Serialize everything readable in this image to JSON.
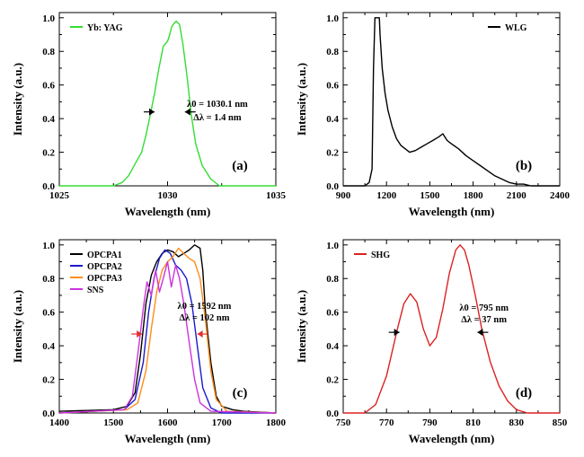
{
  "chart_data": [
    {
      "type": "line",
      "panel_label": "(a)",
      "xlabel": "Wavelength (nm)",
      "ylabel": "Intensity (a.u.)",
      "xlim": [
        1025,
        1035
      ],
      "ylim": [
        0,
        1.0
      ],
      "xticks": [
        1025,
        1030,
        1035
      ],
      "yticks": [
        0.0,
        0.2,
        0.4,
        0.6,
        0.8,
        1.0
      ],
      "grid": false,
      "legend_position": "top-left",
      "annotations": [
        {
          "text": "λ0 = 1030.1 nm",
          "x": 1032.3,
          "y": 0.47
        },
        {
          "text": "Δλ = 1.4 nm",
          "x": 1032.3,
          "y": 0.39
        }
      ],
      "arrows": [
        {
          "direction": "right",
          "x": 1029.4,
          "y": 0.44,
          "color": "#000000"
        },
        {
          "direction": "left",
          "x": 1030.8,
          "y": 0.44,
          "color": "#000000"
        }
      ],
      "series": [
        {
          "name": "Yb: YAG",
          "color": "#33dd33",
          "x": [
            1025,
            1027.5,
            1027.9,
            1028.2,
            1028.5,
            1028.8,
            1029.0,
            1029.2,
            1029.4,
            1029.6,
            1029.8,
            1030.0,
            1030.1,
            1030.2,
            1030.4,
            1030.55,
            1030.7,
            1030.9,
            1031.1,
            1031.3,
            1031.6,
            1032.0,
            1032.4,
            1035
          ],
          "y": [
            0.0,
            0.0,
            0.02,
            0.06,
            0.13,
            0.2,
            0.3,
            0.42,
            0.55,
            0.7,
            0.83,
            0.86,
            0.9,
            0.95,
            0.98,
            0.96,
            0.85,
            0.65,
            0.42,
            0.25,
            0.12,
            0.04,
            0.0,
            0.0
          ]
        }
      ]
    },
    {
      "type": "line",
      "panel_label": "(b)",
      "xlabel": "Wavelength (nm)",
      "ylabel": "Intensity (a.u.)",
      "xlim": [
        900,
        2400
      ],
      "ylim": [
        0,
        1.0
      ],
      "xticks": [
        900,
        1200,
        1500,
        1800,
        2100,
        2400
      ],
      "yticks": [
        0.0,
        0.2,
        0.4,
        0.6,
        0.8,
        1.0
      ],
      "grid": false,
      "legend_position": "top-right",
      "series": [
        {
          "name": "WLG",
          "color": "#000000",
          "x": [
            900,
            1050,
            1080,
            1100,
            1110,
            1120,
            1150,
            1155,
            1170,
            1190,
            1210,
            1240,
            1270,
            1300,
            1330,
            1360,
            1400,
            1440,
            1480,
            1520,
            1560,
            1590,
            1620,
            1650,
            1700,
            1750,
            1800,
            1850,
            1900,
            1950,
            2000,
            2050,
            2100,
            2150,
            2200,
            2300,
            2400
          ],
          "y": [
            0.0,
            0.0,
            0.02,
            0.1,
            0.7,
            1.0,
            1.0,
            0.9,
            0.7,
            0.55,
            0.45,
            0.35,
            0.28,
            0.24,
            0.22,
            0.2,
            0.21,
            0.23,
            0.25,
            0.27,
            0.29,
            0.31,
            0.27,
            0.25,
            0.22,
            0.18,
            0.15,
            0.12,
            0.09,
            0.06,
            0.04,
            0.02,
            0.01,
            0.01,
            0.0,
            0.0,
            0.0
          ]
        }
      ]
    },
    {
      "type": "line",
      "panel_label": "(c)",
      "xlabel": "Wavelength (nm)",
      "ylabel": "Intensity (a.u.)",
      "xlim": [
        1400,
        1800
      ],
      "ylim": [
        0,
        1.0
      ],
      "xticks": [
        1400,
        1500,
        1600,
        1700,
        1800
      ],
      "yticks": [
        0.0,
        0.2,
        0.4,
        0.6,
        0.8,
        1.0
      ],
      "grid": false,
      "legend_position": "top-left",
      "annotations": [
        {
          "text": "λ0 = 1592 nm",
          "x": 1668,
          "y": 0.62
        },
        {
          "text": "Δλ = 102 nm",
          "x": 1668,
          "y": 0.55
        }
      ],
      "arrows": [
        {
          "direction": "right",
          "x": 1553,
          "y": 0.47,
          "color": "#e03030"
        },
        {
          "direction": "left",
          "x": 1655,
          "y": 0.47,
          "color": "#e03030"
        }
      ],
      "series": [
        {
          "name": "OPCPA1",
          "color": "#000000",
          "x": [
            1400,
            1500,
            1525,
            1540,
            1550,
            1560,
            1570,
            1580,
            1590,
            1600,
            1610,
            1620,
            1630,
            1640,
            1650,
            1660,
            1665,
            1670,
            1680,
            1690,
            1700,
            1720,
            1740,
            1800
          ],
          "y": [
            0.01,
            0.02,
            0.04,
            0.12,
            0.35,
            0.65,
            0.82,
            0.9,
            0.95,
            0.97,
            0.96,
            0.93,
            0.95,
            0.97,
            1.0,
            0.98,
            0.85,
            0.6,
            0.3,
            0.1,
            0.04,
            0.02,
            0.01,
            0.0
          ]
        },
        {
          "name": "OPCPA2",
          "color": "#1a1acc",
          "x": [
            1400,
            1520,
            1540,
            1555,
            1565,
            1575,
            1585,
            1595,
            1605,
            1615,
            1625,
            1635,
            1645,
            1655,
            1665,
            1680,
            1700,
            1800
          ],
          "y": [
            0.0,
            0.02,
            0.08,
            0.3,
            0.6,
            0.8,
            0.92,
            0.97,
            0.95,
            0.88,
            0.85,
            0.8,
            0.65,
            0.4,
            0.15,
            0.03,
            0.0,
            0.0
          ]
        },
        {
          "name": "OPCPA3",
          "color": "#ff8c1a",
          "x": [
            1400,
            1525,
            1545,
            1560,
            1570,
            1580,
            1590,
            1600,
            1610,
            1620,
            1630,
            1640,
            1650,
            1660,
            1670,
            1680,
            1690,
            1710,
            1800
          ],
          "y": [
            0.0,
            0.02,
            0.06,
            0.25,
            0.5,
            0.72,
            0.85,
            0.9,
            0.93,
            0.98,
            0.95,
            0.92,
            0.9,
            0.8,
            0.55,
            0.25,
            0.08,
            0.01,
            0.0
          ]
        },
        {
          "name": "SNS",
          "color": "#cc33dd",
          "x": [
            1400,
            1520,
            1535,
            1545,
            1555,
            1562,
            1570,
            1578,
            1585,
            1592,
            1600,
            1607,
            1615,
            1622,
            1630,
            1640,
            1650,
            1660,
            1680,
            1800
          ],
          "y": [
            0.0,
            0.02,
            0.1,
            0.35,
            0.62,
            0.78,
            0.7,
            0.85,
            0.72,
            0.8,
            0.9,
            0.75,
            0.88,
            0.8,
            0.65,
            0.42,
            0.2,
            0.06,
            0.01,
            0.0
          ]
        }
      ]
    },
    {
      "type": "line",
      "panel_label": "(d)",
      "xlabel": "Wavelength (nm)",
      "ylabel": "Intensity (a.u.)",
      "xlim": [
        750,
        850
      ],
      "ylim": [
        0,
        1.0
      ],
      "xticks": [
        750,
        770,
        790,
        810,
        830,
        850
      ],
      "yticks": [
        0.0,
        0.2,
        0.4,
        0.6,
        0.8,
        1.0
      ],
      "grid": false,
      "legend_position": "top-left",
      "annotations": [
        {
          "text": "λ0 = 795 nm",
          "x": 815,
          "y": 0.61
        },
        {
          "text": "Δλ = 37 nm",
          "x": 815,
          "y": 0.54
        }
      ],
      "arrows": [
        {
          "direction": "right",
          "x": 776,
          "y": 0.48,
          "color": "#000000"
        },
        {
          "direction": "left",
          "x": 812,
          "y": 0.48,
          "color": "#000000"
        }
      ],
      "series": [
        {
          "name": "SHG",
          "color": "#dd2222",
          "x": [
            750,
            760,
            765,
            770,
            775,
            778,
            781,
            784,
            787,
            790,
            793,
            796,
            799,
            802,
            804,
            806,
            808,
            811,
            814,
            818,
            822,
            826,
            830,
            835,
            840,
            850
          ],
          "y": [
            0.0,
            0.0,
            0.05,
            0.22,
            0.5,
            0.65,
            0.71,
            0.66,
            0.5,
            0.4,
            0.45,
            0.62,
            0.83,
            0.97,
            1.0,
            0.97,
            0.88,
            0.7,
            0.5,
            0.3,
            0.16,
            0.07,
            0.02,
            0.0,
            0.0,
            0.0
          ]
        }
      ]
    }
  ]
}
